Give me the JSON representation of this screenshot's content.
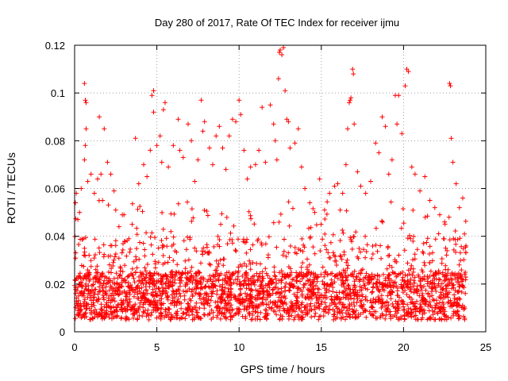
{
  "chart_data": {
    "type": "scatter",
    "title": "Day 280 of 2017, Rate Of TEC Index for receiver ijmu",
    "xlabel": "GPS time / hours",
    "ylabel": "ROTI / TECUs",
    "xlim": [
      0,
      25
    ],
    "ylim": [
      0,
      0.12
    ],
    "xticks": [
      0,
      5,
      10,
      15,
      20,
      25
    ],
    "xtick_labels": [
      "0",
      "5",
      "10",
      "15",
      "20",
      "25"
    ],
    "yticks": [
      0,
      0.02,
      0.04,
      0.06,
      0.08,
      0.1,
      0.12
    ],
    "ytick_labels": [
      "0",
      "0.02",
      "0.04",
      "0.06",
      "0.08",
      "0.1",
      "0.12"
    ],
    "grid": true,
    "marker": "plus",
    "color": "#ff0000",
    "x_data_range": [
      0,
      23.8
    ],
    "series": [
      {
        "name": "ROTI",
        "points": [
          [
            0.05,
            0.054
          ],
          [
            0.1,
            0.058
          ],
          [
            0.2,
            0.047
          ],
          [
            0.3,
            0.05
          ],
          [
            0.4,
            0.06
          ],
          [
            0.6,
            0.104
          ],
          [
            0.65,
            0.097
          ],
          [
            0.7,
            0.096
          ],
          [
            0.7,
            0.085
          ],
          [
            0.65,
            0.078
          ],
          [
            0.6,
            0.072
          ],
          [
            0.8,
            0.063
          ],
          [
            1.0,
            0.066
          ],
          [
            1.2,
            0.058
          ],
          [
            1.4,
            0.064
          ],
          [
            1.5,
            0.09
          ],
          [
            1.8,
            0.085
          ],
          [
            1.6,
            0.066
          ],
          [
            1.7,
            0.055
          ],
          [
            2.0,
            0.071
          ],
          [
            2.2,
            0.066
          ],
          [
            2.4,
            0.059
          ],
          [
            2.5,
            0.051
          ],
          [
            2.7,
            0.044
          ],
          [
            3.0,
            0.049
          ],
          [
            3.3,
            0.039
          ],
          [
            3.5,
            0.045
          ],
          [
            3.7,
            0.081
          ],
          [
            3.9,
            0.062
          ],
          [
            4.2,
            0.07
          ],
          [
            4.4,
            0.065
          ],
          [
            4.6,
            0.076
          ],
          [
            4.8,
            0.092
          ],
          [
            4.7,
            0.099
          ],
          [
            4.8,
            0.101
          ],
          [
            5.0,
            0.078
          ],
          [
            5.2,
            0.082
          ],
          [
            5.3,
            0.071
          ],
          [
            5.5,
            0.096
          ],
          [
            5.4,
            0.093
          ],
          [
            5.7,
            0.069
          ],
          [
            6.0,
            0.078
          ],
          [
            6.3,
            0.089
          ],
          [
            6.4,
            0.076
          ],
          [
            6.6,
            0.073
          ],
          [
            6.9,
            0.087
          ],
          [
            7.1,
            0.08
          ],
          [
            7.3,
            0.063
          ],
          [
            7.5,
            0.072
          ],
          [
            7.7,
            0.097
          ],
          [
            7.8,
            0.084
          ],
          [
            7.9,
            0.088
          ],
          [
            8.2,
            0.077
          ],
          [
            8.4,
            0.07
          ],
          [
            8.6,
            0.082
          ],
          [
            8.8,
            0.086
          ],
          [
            9.0,
            0.077
          ],
          [
            9.2,
            0.068
          ],
          [
            9.4,
            0.082
          ],
          [
            9.6,
            0.089
          ],
          [
            9.8,
            0.088
          ],
          [
            10.0,
            0.097
          ],
          [
            10.1,
            0.091
          ],
          [
            10.3,
            0.076
          ],
          [
            10.5,
            0.064
          ],
          [
            10.7,
            0.069
          ],
          [
            11.0,
            0.07
          ],
          [
            11.2,
            0.076
          ],
          [
            11.4,
            0.094
          ],
          [
            11.6,
            0.071
          ],
          [
            11.9,
            0.095
          ],
          [
            12.1,
            0.087
          ],
          [
            12.2,
            0.08
          ],
          [
            12.3,
            0.072
          ],
          [
            12.4,
            0.106
          ],
          [
            12.45,
            0.117
          ],
          [
            12.5,
            0.118
          ],
          [
            12.6,
            0.116
          ],
          [
            12.7,
            0.119
          ],
          [
            12.8,
            0.101
          ],
          [
            12.9,
            0.089
          ],
          [
            13.0,
            0.088
          ],
          [
            13.1,
            0.077
          ],
          [
            13.4,
            0.079
          ],
          [
            13.6,
            0.085
          ],
          [
            13.8,
            0.069
          ],
          [
            14.0,
            0.06
          ],
          [
            14.3,
            0.054
          ],
          [
            14.6,
            0.05
          ],
          [
            14.9,
            0.064
          ],
          [
            15.2,
            0.051
          ],
          [
            15.5,
            0.058
          ],
          [
            15.8,
            0.061
          ],
          [
            16.0,
            0.062
          ],
          [
            16.3,
            0.058
          ],
          [
            16.5,
            0.07
          ],
          [
            16.6,
            0.085
          ],
          [
            16.7,
            0.096
          ],
          [
            16.75,
            0.097
          ],
          [
            16.8,
            0.098
          ],
          [
            16.9,
            0.11
          ],
          [
            16.95,
            0.108
          ],
          [
            17.0,
            0.087
          ],
          [
            17.2,
            0.067
          ],
          [
            17.4,
            0.061
          ],
          [
            17.7,
            0.058
          ],
          [
            18.0,
            0.063
          ],
          [
            18.3,
            0.079
          ],
          [
            18.5,
            0.075
          ],
          [
            18.7,
            0.09
          ],
          [
            18.9,
            0.086
          ],
          [
            19.1,
            0.066
          ],
          [
            19.3,
            0.072
          ],
          [
            19.5,
            0.099
          ],
          [
            19.6,
            0.087
          ],
          [
            19.7,
            0.099
          ],
          [
            19.9,
            0.083
          ],
          [
            20.1,
            0.103
          ],
          [
            20.2,
            0.11
          ],
          [
            20.3,
            0.109
          ],
          [
            20.5,
            0.069
          ],
          [
            20.7,
            0.066
          ],
          [
            21.0,
            0.059
          ],
          [
            21.3,
            0.065
          ],
          [
            21.6,
            0.055
          ],
          [
            21.9,
            0.052
          ],
          [
            22.2,
            0.049
          ],
          [
            22.5,
            0.046
          ],
          [
            22.8,
            0.104
          ],
          [
            22.85,
            0.103
          ],
          [
            22.9,
            0.081
          ],
          [
            23.0,
            0.071
          ],
          [
            23.2,
            0.062
          ],
          [
            23.4,
            0.052
          ],
          [
            23.6,
            0.056
          ],
          [
            23.7,
            0.041
          ],
          [
            23.8,
            0.036
          ]
        ]
      }
    ]
  }
}
